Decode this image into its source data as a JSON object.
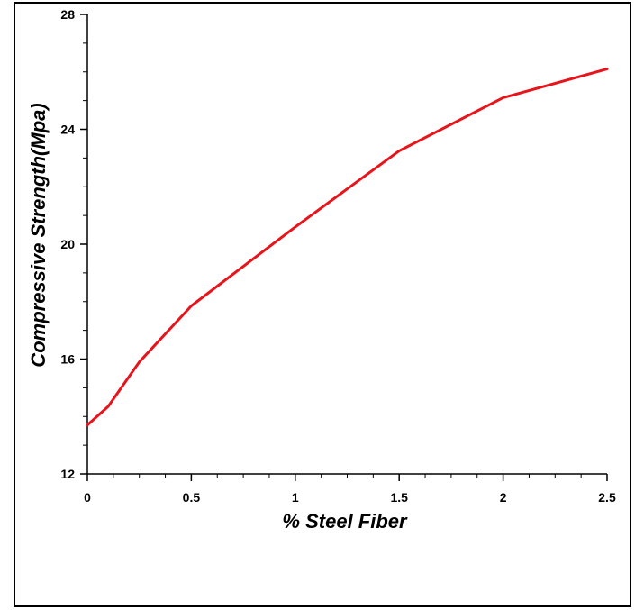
{
  "chart_data": {
    "type": "line",
    "title": "",
    "xlabel": "% Steel Fiber",
    "ylabel": "Compressive Strength(Mpa)",
    "xlim": [
      0,
      2.5
    ],
    "ylim": [
      12,
      28
    ],
    "xticks": [
      0,
      0.5,
      1,
      1.5,
      2,
      2.5
    ],
    "xtick_labels": [
      "0",
      "0.5",
      "1",
      "1.5",
      "2",
      "2.5"
    ],
    "yticks": [
      12,
      16,
      20,
      24,
      28
    ],
    "ytick_labels": [
      "12",
      "16",
      "20",
      "24",
      "28"
    ],
    "grid": false,
    "legend": "none",
    "series": [
      {
        "color": "#e8141b",
        "x": [
          0,
          0.1,
          0.25,
          0.5,
          1.0,
          1.5,
          2.0,
          2.5
        ],
        "y": [
          13.7,
          14.35,
          15.9,
          17.85,
          20.6,
          23.25,
          25.1,
          26.1
        ]
      }
    ]
  }
}
